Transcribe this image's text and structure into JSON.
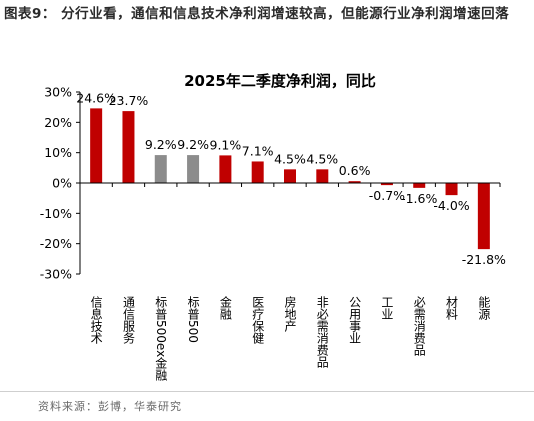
{
  "figure_title": "图表9： 分行业看，通信和信息技术净利润增速较高，但能源行业净利润增速回落",
  "source_note": "资料来源：彭博，华泰研究",
  "chart_data": {
    "type": "bar",
    "title": "2025年二季度净利润，同比",
    "xlabel": "",
    "ylabel": "",
    "ylim": [
      -30,
      30
    ],
    "y_ticks": [
      -30,
      -20,
      -10,
      0,
      10,
      20,
      30
    ],
    "y_tick_labels": [
      "-30%",
      "-20%",
      "-10%",
      "0%",
      "10%",
      "20%",
      "30%"
    ],
    "grid": false,
    "legend": "none",
    "categories": [
      "信息技术",
      "通信服务",
      "标普500ex金融",
      "标普500",
      "金融",
      "医疗保健",
      "房地产",
      "非必需消费品",
      "公用事业",
      "工业",
      "必需消费品",
      "材料",
      "能源"
    ],
    "values": [
      24.6,
      23.7,
      9.2,
      9.2,
      9.1,
      7.1,
      4.5,
      4.5,
      0.6,
      -0.7,
      -1.6,
      -4.0,
      -21.8
    ],
    "value_labels": [
      "24.6%",
      "23.7%",
      "9.2%",
      "9.2%",
      "9.1%",
      "7.1%",
      "4.5%",
      "4.5%",
      "0.6%",
      "-0.7%",
      "-1.6%",
      "-4.0%",
      "-21.8%"
    ],
    "bar_colors": [
      "#C00000",
      "#C00000",
      "#8C8C8C",
      "#8C8C8C",
      "#C00000",
      "#C00000",
      "#C00000",
      "#C00000",
      "#C00000",
      "#C00000",
      "#C00000",
      "#C00000",
      "#C00000"
    ]
  }
}
